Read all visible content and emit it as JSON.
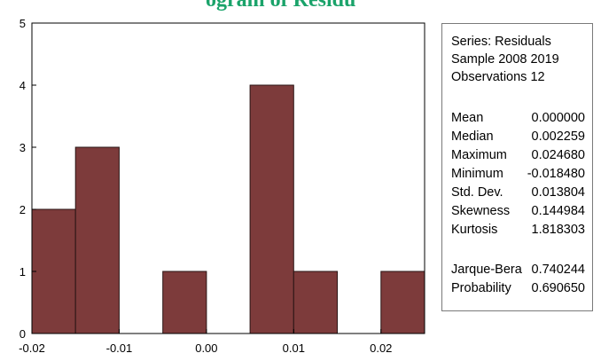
{
  "caption_fragment": "ogram of Residu",
  "stats_panel": {
    "series": "Series: Residuals",
    "sample": "Sample 2008 2019",
    "observations": "Observations 12",
    "rows": [
      {
        "label": "Mean",
        "value": "0.000000"
      },
      {
        "label": "Median",
        "value": "0.002259"
      },
      {
        "label": "Maximum",
        "value": "0.024680"
      },
      {
        "label": "Minimum",
        "value": "-0.018480"
      },
      {
        "label": "Std. Dev.",
        "value": "0.013804"
      },
      {
        "label": "Skewness",
        "value": "0.144984"
      },
      {
        "label": "Kurtosis",
        "value": "1.818303"
      }
    ],
    "tests": [
      {
        "label": "Jarque-Bera",
        "value": "0.740244"
      },
      {
        "label": "Probability",
        "value": "0.690650"
      }
    ]
  },
  "colors": {
    "bar": "#7d3b3b",
    "bar_edge": "#2a1414",
    "caption": "#1aa36a"
  },
  "chart_data": {
    "type": "bar",
    "title": "",
    "xlabel": "",
    "ylabel": "",
    "bins": [
      {
        "from": -0.02,
        "to": -0.015,
        "count": 2
      },
      {
        "from": -0.015,
        "to": -0.01,
        "count": 3
      },
      {
        "from": -0.01,
        "to": -0.005,
        "count": 0
      },
      {
        "from": -0.005,
        "to": 0.0,
        "count": 1
      },
      {
        "from": 0.0,
        "to": 0.005,
        "count": 0
      },
      {
        "from": 0.005,
        "to": 0.01,
        "count": 4
      },
      {
        "from": 0.01,
        "to": 0.015,
        "count": 1
      },
      {
        "from": 0.015,
        "to": 0.02,
        "count": 0
      },
      {
        "from": 0.02,
        "to": 0.025,
        "count": 1
      }
    ],
    "xlim": [
      -0.02,
      0.025
    ],
    "ylim": [
      0,
      5
    ],
    "x_ticks": [
      {
        "value": -0.02,
        "label": "-0.02"
      },
      {
        "value": -0.01,
        "label": "-0.01"
      },
      {
        "value": 0.0,
        "label": "0.00"
      },
      {
        "value": 0.01,
        "label": "0.01"
      },
      {
        "value": 0.02,
        "label": "0.02"
      }
    ],
    "y_ticks": [
      {
        "value": 0,
        "label": "0"
      },
      {
        "value": 1,
        "label": "1"
      },
      {
        "value": 2,
        "label": "2"
      },
      {
        "value": 3,
        "label": "3"
      },
      {
        "value": 4,
        "label": "4"
      },
      {
        "value": 5,
        "label": "5"
      }
    ],
    "grid": false,
    "legend": "none"
  }
}
